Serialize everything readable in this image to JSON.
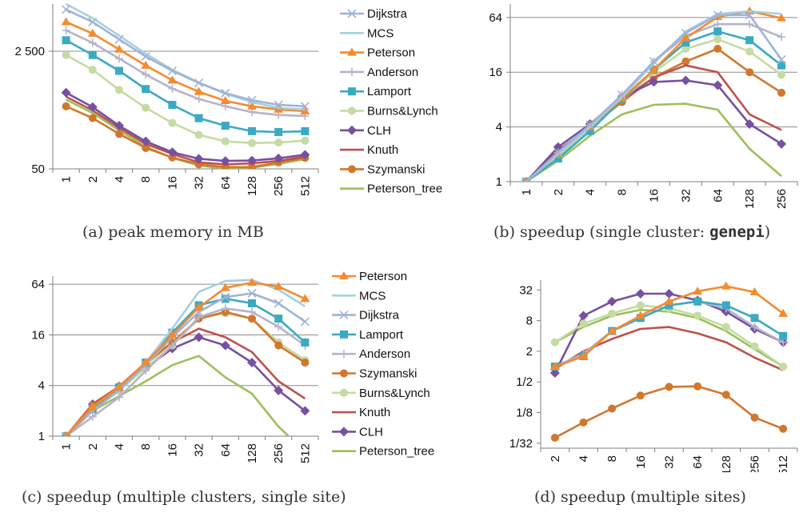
{
  "colors": {
    "Dijkstra": "#9fb3d6",
    "MCS": "#a6d1df",
    "Peterson": "#f58a2e",
    "Anderson": "#b6b3cc",
    "Lamport": "#3aaac3",
    "Burns&Lynch": "#c4dba2",
    "CLH": "#7750a0",
    "Knuth": "#c0504d",
    "Szymanski": "#d1772d",
    "Peterson_tree": "#9bc05b"
  },
  "markers": {
    "Dijkstra": "x",
    "MCS": "none",
    "Peterson": "triangle",
    "Anderson": "plus",
    "Lamport": "square",
    "Burns&Lynch": "circle",
    "CLH": "diamond",
    "Knuth": "none",
    "Szymanski": "circle",
    "Peterson_tree": "none"
  },
  "captions": {
    "a": "(a) peak memory in MB",
    "b_prefix": "(b) speedup (single cluster: ",
    "b_mono": "genepi",
    "b_suffix": ")",
    "c": "(c) speedup (multiple clusters, single site)",
    "d": "(d) speedup (multiple sites)"
  },
  "chart_data": [
    {
      "id": "a",
      "type": "line",
      "title": "",
      "scale": "log",
      "x": [
        "1",
        "2",
        "4",
        "8",
        "16",
        "32",
        "64",
        "128",
        "256",
        "512"
      ],
      "ylim": [
        50,
        12000
      ],
      "yticks": [
        {
          "v": 50,
          "label": "50"
        },
        {
          "v": 2500,
          "label": "2 500"
        }
      ],
      "grid": true,
      "legend": "right",
      "series": [
        {
          "name": "Dijkstra",
          "values": [
            10000,
            6600,
            3700,
            2100,
            1300,
            870,
            620,
            490,
            420,
            400
          ]
        },
        {
          "name": "MCS",
          "values": [
            12000,
            7500,
            4200,
            2300,
            1350,
            880,
            610,
            460,
            380,
            360
          ]
        },
        {
          "name": "Peterson",
          "values": [
            6600,
            4500,
            2650,
            1550,
            950,
            650,
            480,
            400,
            360,
            340
          ]
        },
        {
          "name": "Anderson",
          "values": [
            5000,
            3300,
            1950,
            1150,
            720,
            510,
            400,
            330,
            300,
            290
          ]
        },
        {
          "name": "Lamport",
          "values": [
            3600,
            2200,
            1300,
            710,
            420,
            270,
            210,
            175,
            170,
            175
          ]
        },
        {
          "name": "Burns&Lynch",
          "values": [
            2200,
            1350,
            690,
            380,
            230,
            155,
            125,
            118,
            120,
            128
          ]
        },
        {
          "name": "CLH",
          "values": [
            630,
            390,
            210,
            125,
            87,
            70,
            65,
            66,
            71,
            80
          ]
        },
        {
          "name": "Knuth",
          "values": [
            550,
            350,
            195,
            115,
            82,
            62,
            58,
            60,
            65,
            75
          ]
        },
        {
          "name": "Szymanski",
          "values": [
            400,
            270,
            160,
            100,
            73,
            58,
            53,
            53,
            62,
            72
          ]
        },
        {
          "name": "Peterson_tree",
          "values": [
            500,
            320,
            180,
            105,
            72,
            56,
            50,
            52,
            59,
            69
          ]
        }
      ]
    },
    {
      "id": "b",
      "type": "line",
      "title": "",
      "scale": "log",
      "x": [
        "1",
        "2",
        "4",
        "8",
        "16",
        "32",
        "64",
        "128",
        "256"
      ],
      "ylim": [
        1,
        90
      ],
      "yticks": [
        {
          "v": 1,
          "label": "1"
        },
        {
          "v": 4,
          "label": "4"
        },
        {
          "v": 16,
          "label": "16"
        },
        {
          "v": 64,
          "label": "64"
        }
      ],
      "grid": true,
      "legend": "none",
      "series": [
        {
          "name": "Dijkstra",
          "values": [
            1,
            2.1,
            4.2,
            9.0,
            21,
            43,
            68,
            68,
            22
          ]
        },
        {
          "name": "MCS",
          "values": [
            1,
            2.0,
            4.0,
            8.5,
            20,
            45,
            70,
            75,
            70
          ]
        },
        {
          "name": "Peterson",
          "values": [
            1,
            2.0,
            4.0,
            8.2,
            17,
            38,
            65,
            75,
            63
          ]
        },
        {
          "name": "Anderson",
          "values": [
            1,
            2.1,
            4.2,
            9.0,
            21,
            40,
            54,
            54,
            39
          ]
        },
        {
          "name": "Lamport",
          "values": [
            1,
            1.8,
            3.6,
            8.0,
            17,
            34,
            45,
            36,
            19
          ]
        },
        {
          "name": "Burns&Lynch",
          "values": [
            1,
            1.9,
            3.8,
            8.0,
            16,
            29,
            37,
            27,
            15
          ]
        },
        {
          "name": "CLH",
          "values": [
            1,
            2.4,
            4.3,
            8.5,
            12.5,
            13,
            11.5,
            4.3,
            2.6
          ]
        },
        {
          "name": "Knuth",
          "values": [
            1,
            2.2,
            4.0,
            8.0,
            14,
            19,
            16,
            5.5,
            3.7
          ]
        },
        {
          "name": "Szymanski",
          "values": [
            1,
            2.2,
            4.0,
            7.5,
            14,
            21,
            29,
            16,
            9.5
          ]
        },
        {
          "name": "Peterson_tree",
          "values": [
            1,
            1.7,
            3.2,
            5.5,
            7.0,
            7.2,
            6.2,
            2.3,
            1.15
          ]
        }
      ]
    },
    {
      "id": "c",
      "type": "line",
      "title": "",
      "scale": "log",
      "x": [
        "1",
        "2",
        "4",
        "8",
        "16",
        "32",
        "64",
        "128",
        "256",
        "512"
      ],
      "ylim": [
        1,
        80
      ],
      "yticks": [
        {
          "v": 1,
          "label": "1"
        },
        {
          "v": 4,
          "label": "4"
        },
        {
          "v": 16,
          "label": "16"
        },
        {
          "v": 64,
          "label": "64"
        }
      ],
      "grid": true,
      "legend": "right",
      "series": [
        {
          "name": "Peterson",
          "values": [
            1,
            2.2,
            3.8,
            7.5,
            16,
            34,
            58,
            67,
            60,
            43
          ]
        },
        {
          "name": "MCS",
          "values": [
            1,
            2.2,
            3.8,
            7.5,
            19,
            52,
            70,
            72,
            55,
            35
          ]
        },
        {
          "name": "Dijkstra",
          "values": [
            1,
            2.0,
            3.5,
            7.0,
            15,
            30,
            45,
            50,
            38,
            23
          ]
        },
        {
          "name": "Lamport",
          "values": [
            1,
            2.1,
            3.8,
            7.5,
            17,
            36,
            43,
            38,
            25,
            13
          ]
        },
        {
          "name": "Anderson",
          "values": [
            1,
            1.7,
            2.9,
            6.0,
            12,
            26,
            33,
            30,
            20,
            12
          ]
        },
        {
          "name": "Szymanski",
          "values": [
            1,
            2.3,
            3.9,
            7.2,
            13,
            25,
            30,
            25,
            12,
            7.5
          ]
        },
        {
          "name": "Burns&Lynch",
          "values": [
            1,
            2.3,
            3.5,
            6.5,
            12,
            25,
            29,
            25,
            13,
            8.0
          ]
        },
        {
          "name": "Knuth",
          "values": [
            1,
            2.4,
            3.9,
            7.5,
            13,
            19,
            15,
            10,
            4.5,
            2.8
          ]
        },
        {
          "name": "CLH",
          "values": [
            1,
            2.4,
            3.9,
            6.5,
            11,
            15,
            12,
            7.5,
            3.5,
            2.0
          ]
        },
        {
          "name": "Peterson_tree",
          "values": [
            1,
            2.0,
            3.0,
            4.5,
            7.0,
            9.0,
            5.0,
            3.2,
            1.3,
            0.65
          ]
        }
      ]
    },
    {
      "id": "d",
      "type": "line",
      "title": "",
      "scale": "log",
      "x": [
        "2",
        "4",
        "8",
        "16",
        "32",
        "64",
        "128",
        "256",
        "512"
      ],
      "ylim": [
        0.025,
        50
      ],
      "yticks": [
        {
          "v": 0.03125,
          "label": "1/32"
        },
        {
          "v": 0.125,
          "label": "1/8"
        },
        {
          "v": 0.5,
          "label": "1/2"
        },
        {
          "v": 2,
          "label": "2"
        },
        {
          "v": 8,
          "label": "8"
        },
        {
          "v": 32,
          "label": "32"
        }
      ],
      "grid": false,
      "legend": "none",
      "series": [
        {
          "name": "Peterson",
          "values": [
            1.0,
            1.6,
            5.0,
            10,
            19,
            30,
            38,
            29,
            11
          ]
        },
        {
          "name": "Lamport",
          "values": [
            1.0,
            1.6,
            5.0,
            9.0,
            16,
            19,
            16,
            9.0,
            4.0
          ]
        },
        {
          "name": "Anderson",
          "values": [
            1.0,
            1.8,
            5.0,
            9.0,
            16,
            19,
            14,
            6.0,
            3.0
          ]
        },
        {
          "name": "Burns&Lynch",
          "values": [
            3.0,
            7.0,
            11,
            16,
            14,
            10,
            6.0,
            2.5,
            1.0
          ]
        },
        {
          "name": "CLH",
          "values": [
            0.75,
            10,
            19,
            27,
            27,
            20,
            12,
            5.5,
            3.0
          ]
        },
        {
          "name": "Knuth",
          "values": [
            0.9,
            2.0,
            3.5,
            5.5,
            6.0,
            4.5,
            3.0,
            1.5,
            0.85
          ]
        },
        {
          "name": "Szymanski",
          "values": [
            0.04,
            0.08,
            0.15,
            0.27,
            0.4,
            0.41,
            0.28,
            0.1,
            0.06
          ]
        },
        {
          "name": "Peterson_tree",
          "values": [
            3.0,
            6.0,
            10,
            13,
            12,
            9.0,
            5.0,
            2.2,
            1.0
          ]
        }
      ]
    }
  ]
}
